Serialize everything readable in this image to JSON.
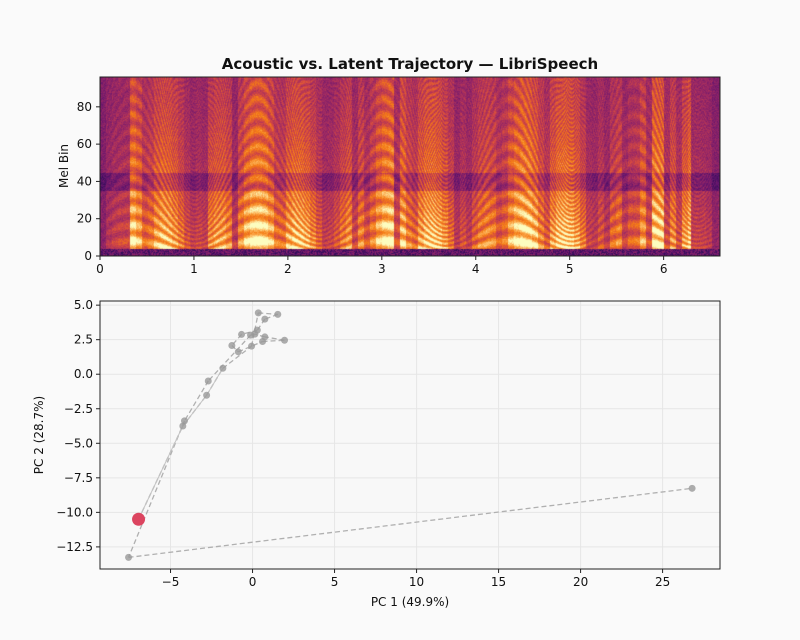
{
  "title": "Acoustic vs. Latent Trajectory — LibriSpeech",
  "chart_data": [
    {
      "type": "heatmap",
      "ylabel": "Mel Bin",
      "xlabel": "",
      "xlim": [
        0,
        6.6
      ],
      "ylim": [
        0,
        96
      ],
      "xticks": [
        "0",
        "1",
        "2",
        "3",
        "4",
        "5",
        "6"
      ],
      "yticks": [
        "0",
        "20",
        "40",
        "60",
        "80"
      ],
      "colormap": "magma"
    },
    {
      "type": "scatter",
      "xlabel": "PC 1 (49.9%)",
      "ylabel": "PC 2 (28.7%)",
      "xlim": [
        -9.3,
        28.5
      ],
      "ylim": [
        -14.1,
        5.3
      ],
      "xticks": [
        "−5",
        "0",
        "5",
        "10",
        "15",
        "20",
        "25"
      ],
      "yticks": [
        "5.0",
        "2.5",
        "0.0",
        "−2.5",
        "−5.0",
        "−7.5",
        "−10.0",
        "−12.5"
      ],
      "grid": true,
      "trajectory": [
        [
          -6.95,
          -10.5
        ],
        [
          -4.25,
          -3.75
        ],
        [
          -2.8,
          -1.52
        ],
        [
          -1.81,
          0.43
        ],
        [
          -0.06,
          2.03
        ],
        [
          0.35,
          4.44
        ],
        [
          1.54,
          4.33
        ],
        [
          0.75,
          3.99
        ],
        [
          0.29,
          3.19
        ],
        [
          -0.67,
          2.88
        ],
        [
          -1.26,
          2.08
        ],
        [
          -0.87,
          1.62
        ],
        [
          0.61,
          2.37
        ],
        [
          1.95,
          2.46
        ],
        [
          0.75,
          2.7
        ],
        [
          0.14,
          2.9
        ],
        [
          -0.12,
          2.83
        ],
        [
          -2.7,
          -0.49
        ],
        [
          -4.15,
          -3.38
        ],
        [
          -7.56,
          -13.26
        ],
        [
          26.8,
          -8.26
        ]
      ],
      "current_point": [
        -6.95,
        -10.5
      ],
      "colors": {
        "trajectory": "#999999",
        "line": "#b0b0b0",
        "current": "#dc4560"
      }
    }
  ]
}
